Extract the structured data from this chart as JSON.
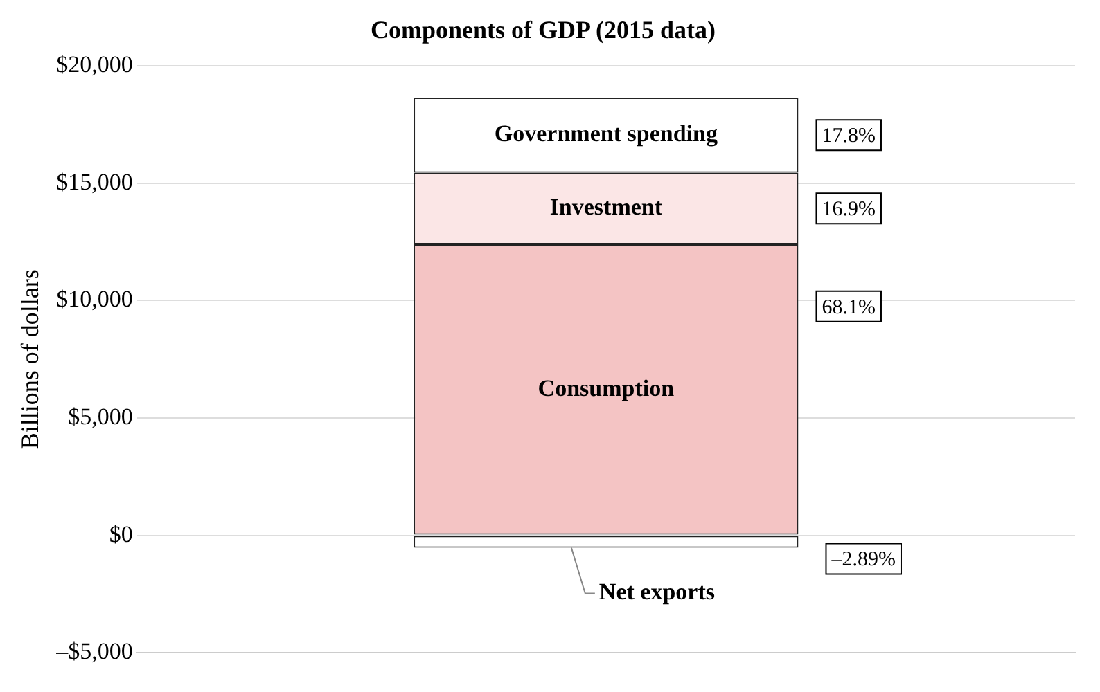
{
  "chart_data": {
    "type": "bar",
    "title": "Components of GDP (2015 data)",
    "ylabel": "Billions of dollars",
    "categories": [
      null
    ],
    "stacked": true,
    "series": [
      {
        "name": "Net exports",
        "color": "#ffffff",
        "values": [
          -530
        ]
      },
      {
        "name": "Consumption",
        "color": "#f4c4c4",
        "values": [
          12400
        ]
      },
      {
        "name": "Investment",
        "color": "#fbe6e6",
        "values": [
          3050
        ]
      },
      {
        "name": "Government spending",
        "color": "#ffffff",
        "values": [
          3200
        ]
      }
    ],
    "annotations": [
      "–2.89%",
      "68.1%",
      "16.9%",
      "17.8%"
    ],
    "ylim": [
      -5000,
      20000
    ],
    "yticks": [
      {
        "value": -5000,
        "label": "–$5,000"
      },
      {
        "value": 0,
        "label": "$0"
      },
      {
        "value": 5000,
        "label": "$5,000"
      },
      {
        "value": 10000,
        "label": "$10,000"
      },
      {
        "value": 15000,
        "label": "$15,000"
      },
      {
        "value": 20000,
        "label": "$20,000"
      }
    ],
    "grid": "y",
    "legend": false
  }
}
